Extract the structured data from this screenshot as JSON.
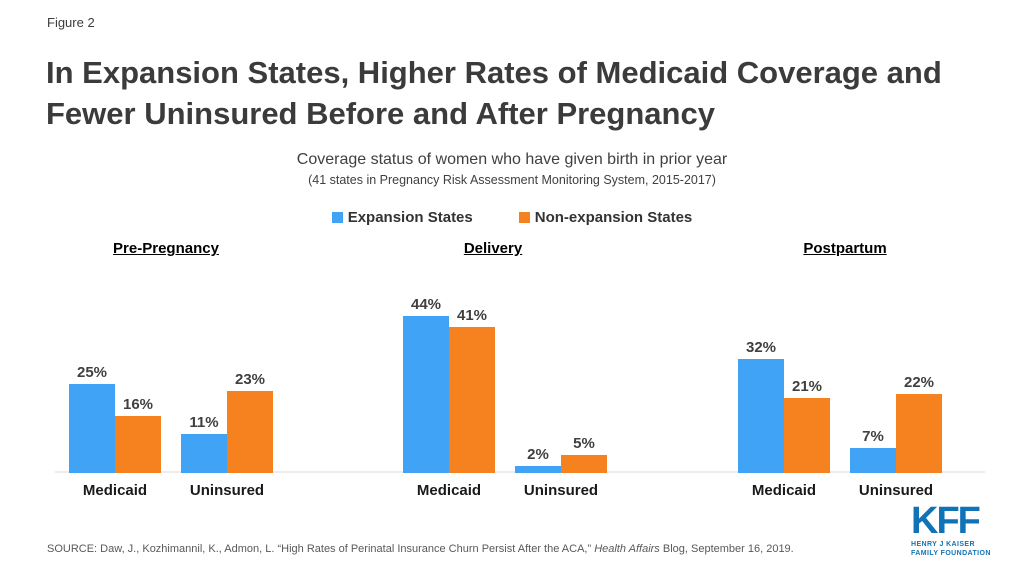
{
  "meta": {
    "figure_label": "Figure 2"
  },
  "header": {
    "title": "In Expansion States, Higher Rates of Medicaid Coverage and\nFewer Uninsured Before and After Pregnancy"
  },
  "legend": {
    "items": [
      {
        "label": "Expansion States",
        "color": "#41A3F5"
      },
      {
        "label": "Non-expansion States",
        "color": "#F5821F"
      }
    ]
  },
  "chart_data": {
    "type": "bar",
    "title": "Coverage status of women who have given birth in prior year",
    "subtitle": "(41 states in Pregnancy Risk Assessment Monitoring System, 2015-2017)",
    "unit": "%",
    "ylim": [
      0,
      50
    ],
    "grid": false,
    "legend_position": "top",
    "colors": {
      "expansion": "#41A3F5",
      "non_expansion": "#F5821F"
    },
    "groups": [
      {
        "label": "Pre-Pregnancy",
        "categories": [
          "Medicaid",
          "Uninsured"
        ],
        "series": [
          {
            "name": "Expansion States",
            "values": [
              25,
              11
            ]
          },
          {
            "name": "Non-expansion States",
            "values": [
              16,
              23
            ]
          }
        ]
      },
      {
        "label": "Delivery",
        "categories": [
          "Medicaid",
          "Uninsured"
        ],
        "series": [
          {
            "name": "Expansion States",
            "values": [
              44,
              2
            ]
          },
          {
            "name": "Non-expansion States",
            "values": [
              41,
              5
            ]
          }
        ]
      },
      {
        "label": "Postpartum",
        "categories": [
          "Medicaid",
          "Uninsured"
        ],
        "series": [
          {
            "name": "Expansion States",
            "values": [
              32,
              7
            ]
          },
          {
            "name": "Non-expansion States",
            "values": [
              21,
              22
            ]
          }
        ]
      }
    ]
  },
  "source": {
    "prefix": "SOURCE: Daw, J., Kozhimannil, K., Admon, L. “High Rates of Perinatal Insurance Churn Persist After the ACA,” ",
    "italic": "Health Affairs",
    "suffix": " Blog, September 16, 2019."
  },
  "logo": {
    "text": "KFF",
    "sub_line1": "HENRY J KAISER",
    "sub_line2": "FAMILY FOUNDATION",
    "color": "#1173B7"
  }
}
